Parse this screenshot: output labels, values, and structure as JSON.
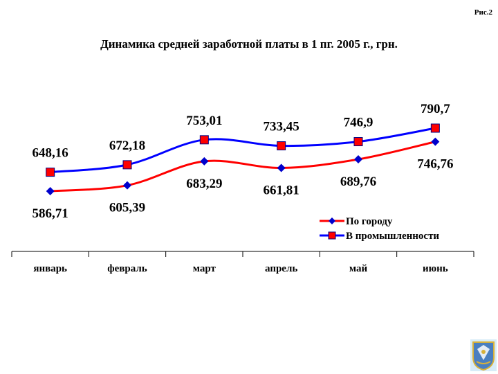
{
  "figure_label": "Рис.2",
  "chart_data": {
    "type": "line",
    "title": "Динамика средней заработной платы в 1 пг. 2005 г., грн.",
    "categories": [
      "январь",
      "февраль",
      "март",
      "апрель",
      "май",
      "июнь"
    ],
    "series": [
      {
        "name": "По городу",
        "values": [
          586.71,
          605.39,
          683.29,
          661.81,
          689.76,
          746.76
        ],
        "labels": [
          "586,71",
          "605,39",
          "683,29",
          "661,81",
          "689,76",
          "746,76"
        ],
        "color": "#ff0000",
        "marker": "diamond",
        "marker_color": "#0000cc"
      },
      {
        "name": "В промышленности",
        "values": [
          648.16,
          672.18,
          753.01,
          733.45,
          746.9,
          790.7
        ],
        "labels": [
          "648,16",
          "672,18",
          "753,01",
          "733,45",
          "746,9",
          "790,7"
        ],
        "color": "#0000ff",
        "marker": "square",
        "marker_color": "#ff0000"
      }
    ],
    "smooth": true,
    "grid": false,
    "y_axis_visible": false,
    "legend_position": "right"
  },
  "emblem": {
    "name": "coat-of-arms",
    "colors": {
      "sky": "#6fb6e6",
      "shield": "#4a7fc0",
      "gold": "#d8b13a"
    }
  }
}
